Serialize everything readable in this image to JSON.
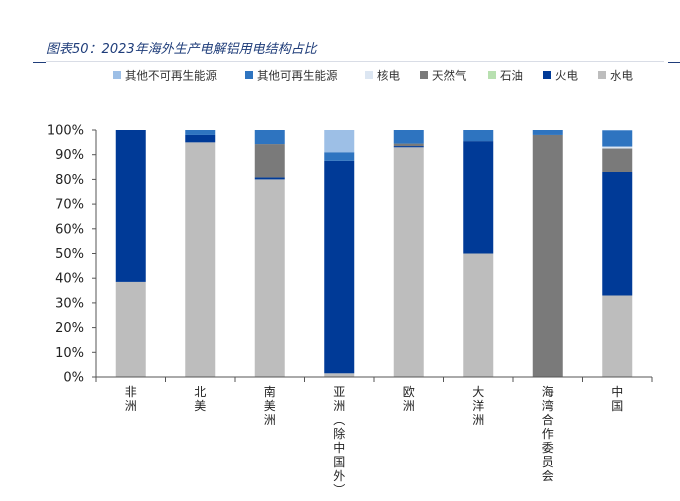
{
  "title": "图表50：2023年海外生产电解铝用电结构占比",
  "chart_data": {
    "type": "bar",
    "stacked": true,
    "categories": [
      "非洲",
      "北美",
      "南美洲",
      "亚洲（除中国外）",
      "欧洲",
      "大洋洲",
      "海湾合作委员会",
      "中国"
    ],
    "ylim": [
      0,
      100
    ],
    "yticks": [
      "0%",
      "10%",
      "20%",
      "30%",
      "40%",
      "50%",
      "60%",
      "70%",
      "80%",
      "90%",
      "100%"
    ],
    "legend_position": "top",
    "series": [
      {
        "name": "水电",
        "color": "#bdbdbd",
        "values": [
          38.5,
          95,
          80,
          1.5,
          93,
          50,
          0,
          33
        ]
      },
      {
        "name": "火电",
        "color": "#003a97",
        "values": [
          61.5,
          3,
          0.8,
          86,
          0.5,
          45.5,
          0,
          50
        ]
      },
      {
        "name": "石油",
        "color": "#b8e0b0",
        "values": [
          0,
          0,
          0,
          0,
          0,
          0,
          0,
          0
        ]
      },
      {
        "name": "天然气",
        "color": "#7a7a7a",
        "values": [
          0,
          0,
          13.5,
          0,
          1,
          0,
          98,
          9.5
        ]
      },
      {
        "name": "核电",
        "color": "#dce6f2",
        "values": [
          0,
          0,
          0,
          0,
          0,
          0,
          0,
          0.8
        ]
      },
      {
        "name": "其他可再生能源",
        "color": "#2e74c0",
        "values": [
          0,
          2,
          5.7,
          3.5,
          5.5,
          4.5,
          2,
          6.5
        ]
      },
      {
        "name": "其他不可再生能源",
        "color": "#9dbfe6",
        "values": [
          0,
          0,
          0,
          9,
          0,
          0,
          0,
          0.2
        ]
      }
    ]
  }
}
